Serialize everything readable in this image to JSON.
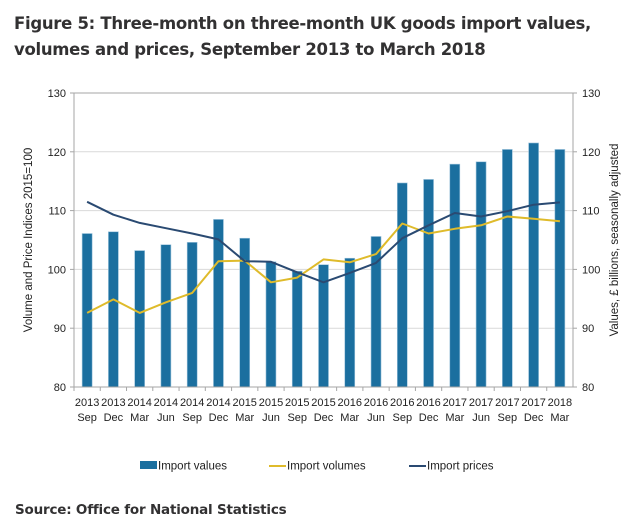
{
  "figure": {
    "title": "Figure 5: Three-month on three-month UK goods import values, volumes and prices, September 2013 to March 2018",
    "source": "Source: Office for National Statistics"
  },
  "colors": {
    "values_bar": "#1b6f9f",
    "volumes_line": "#dfbb2b",
    "prices_line": "#2a4a72",
    "gridline": "#d9d9d9",
    "axis": "#a6a6a6"
  },
  "chart_data": {
    "type": "bar",
    "title": "Three-month on three-month UK goods import values, volumes and prices, September 2013 to March 2018",
    "categories": [
      {
        "year": "2013",
        "month": "Sep"
      },
      {
        "year": "2013",
        "month": "Dec"
      },
      {
        "year": "2014",
        "month": "Mar"
      },
      {
        "year": "2014",
        "month": "Jun"
      },
      {
        "year": "2014",
        "month": "Sep"
      },
      {
        "year": "2014",
        "month": "Dec"
      },
      {
        "year": "2015",
        "month": "Mar"
      },
      {
        "year": "2015",
        "month": "Jun"
      },
      {
        "year": "2015",
        "month": "Sep"
      },
      {
        "year": "2015",
        "month": "Dec"
      },
      {
        "year": "2016",
        "month": "Mar"
      },
      {
        "year": "2016",
        "month": "Jun"
      },
      {
        "year": "2016",
        "month": "Sep"
      },
      {
        "year": "2016",
        "month": "Dec"
      },
      {
        "year": "2017",
        "month": "Mar"
      },
      {
        "year": "2017",
        "month": "Jun"
      },
      {
        "year": "2017",
        "month": "Sep"
      },
      {
        "year": "2017",
        "month": "Dec"
      },
      {
        "year": "2018",
        "month": "Mar"
      }
    ],
    "series": [
      {
        "name": "Import values",
        "type": "bar",
        "axis": "right",
        "values": [
          106.1,
          106.4,
          103.2,
          104.2,
          104.6,
          108.5,
          105.3,
          101.3,
          99.7,
          100.8,
          101.9,
          105.6,
          114.7,
          115.3,
          117.9,
          118.3,
          120.4,
          121.5,
          120.4
        ]
      },
      {
        "name": "Import volumes",
        "type": "line",
        "axis": "left",
        "values": [
          92.6,
          94.9,
          92.6,
          94.4,
          96.0,
          101.4,
          101.5,
          97.8,
          98.6,
          101.7,
          101.2,
          102.6,
          107.8,
          106.1,
          106.9,
          107.5,
          109.0,
          108.6,
          108.2
        ]
      },
      {
        "name": "Import prices",
        "type": "line",
        "axis": "left",
        "values": [
          111.5,
          109.3,
          107.9,
          107.0,
          106.1,
          105.1,
          101.4,
          101.3,
          99.5,
          97.8,
          99.4,
          101.1,
          105.3,
          107.5,
          109.6,
          109.0,
          109.9,
          111.0,
          111.4
        ]
      }
    ],
    "ylabel": "Volume and Price Indices 2015=100",
    "y2label": "Values, £ billions, seasonally adjusted",
    "xlabel": "",
    "ylim": [
      80,
      130
    ],
    "y2lim": [
      80,
      130
    ],
    "yticks": [
      "80",
      "90",
      "100",
      "110",
      "120",
      "130"
    ],
    "y2ticks": [
      "80",
      "90",
      "100",
      "110",
      "120",
      "130"
    ],
    "grid": true,
    "legend": {
      "placement": "bottom",
      "entries": [
        "Import values",
        "Import volumes",
        "Import prices"
      ]
    }
  }
}
